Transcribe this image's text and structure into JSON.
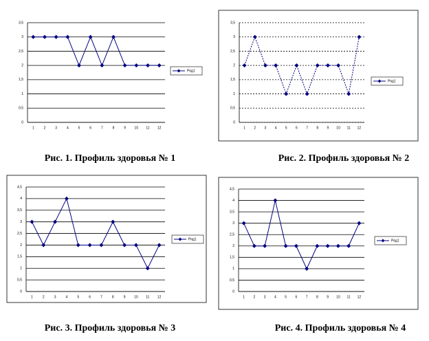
{
  "chart_data": [
    {
      "type": "line",
      "categories": [
        "1",
        "2",
        "3",
        "4",
        "5",
        "6",
        "7",
        "8",
        "9",
        "10",
        "11",
        "12"
      ],
      "series": [
        {
          "name": "Ряд1",
          "color": "#000080",
          "values": [
            3,
            3,
            3,
            3,
            2,
            3,
            2,
            3,
            2,
            2,
            2,
            2
          ]
        }
      ],
      "ylim": [
        0,
        3.5
      ],
      "yticks": [
        0,
        {
          "value": 0.5,
          "label": "0,5"
        },
        1,
        {
          "value": 1.5,
          "label": "1,5"
        },
        2,
        {
          "value": 2.5,
          "label": "2,5"
        },
        3,
        {
          "value": 3.5,
          "label": "3,5"
        }
      ],
      "grid": "solid",
      "legend": "right"
    },
    {
      "type": "line",
      "categories": [
        "1",
        "2",
        "3",
        "4",
        "5",
        "6",
        "7",
        "8",
        "9",
        "10",
        "11",
        "12"
      ],
      "series": [
        {
          "name": "Ряд1",
          "color": "#000080",
          "values": [
            2,
            3,
            2,
            2,
            1,
            2,
            1,
            2,
            2,
            2,
            1,
            3
          ]
        }
      ],
      "ylim": [
        0,
        3.5
      ],
      "yticks": [
        0,
        {
          "value": 0.5,
          "label": "0,5"
        },
        1,
        {
          "value": 1.5,
          "label": "1,5"
        },
        2,
        {
          "value": 2.5,
          "label": "2,5"
        },
        3,
        {
          "value": 3.5,
          "label": "3,5"
        }
      ],
      "grid": "dashed",
      "legend": "right"
    },
    {
      "type": "line",
      "categories": [
        "1",
        "2",
        "3",
        "4",
        "5",
        "6",
        "7",
        "8",
        "9",
        "10",
        "11",
        "12"
      ],
      "series": [
        {
          "name": "Ряд1",
          "color": "#000080",
          "values": [
            3,
            2,
            3,
            4,
            2,
            2,
            2,
            3,
            2,
            2,
            1,
            2
          ]
        }
      ],
      "ylim": [
        0,
        4.5
      ],
      "yticks": [
        0,
        {
          "value": 0.5,
          "label": "0,5"
        },
        1,
        {
          "value": 1.5,
          "label": "1,5"
        },
        2,
        {
          "value": 2.5,
          "label": "2,5"
        },
        3,
        {
          "value": 3.5,
          "label": "3,5"
        },
        4,
        {
          "value": 4.5,
          "label": "4,5"
        }
      ],
      "grid": "solid",
      "legend": "right"
    },
    {
      "type": "line",
      "categories": [
        "1",
        "2",
        "3",
        "4",
        "5",
        "6",
        "7",
        "8",
        "9",
        "10",
        "11",
        "12"
      ],
      "series": [
        {
          "name": "Ряд1",
          "color": "#000080",
          "values": [
            3,
            2,
            2,
            4,
            2,
            2,
            1,
            2,
            2,
            2,
            2,
            3
          ]
        }
      ],
      "ylim": [
        0,
        4.5
      ],
      "yticks": [
        0,
        {
          "value": 0.5,
          "label": "0,5"
        },
        1,
        {
          "value": 1.5,
          "label": "1,5"
        },
        2,
        {
          "value": 2.5,
          "label": "2,5"
        },
        3,
        {
          "value": 3.5,
          "label": "3,5"
        },
        4,
        {
          "value": 4.5,
          "label": "4,5"
        }
      ],
      "grid": "solid",
      "legend": "right"
    }
  ],
  "captions": [
    "Рис. 1. Профиль здоровья № 1",
    "Рис. 2. Профиль здоровья № 2",
    "Рис. 3. Профиль здоровья № 3",
    "Рис. 4. Профиль здоровья № 4"
  ]
}
